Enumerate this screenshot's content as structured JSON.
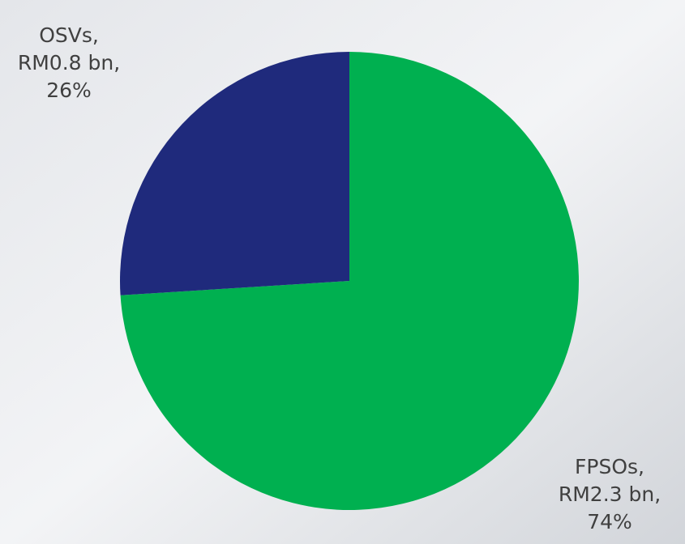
{
  "chart_data": {
    "type": "pie",
    "categories": [
      "FPSOs,",
      "OSVs,"
    ],
    "values": [
      74,
      26
    ],
    "value_labels": [
      "74%",
      "26%"
    ],
    "amounts": [
      2.3,
      0.8
    ],
    "amount_labels": [
      "RM2.3 bn,",
      "RM0.8 bn,"
    ],
    "colors": [
      "#00b050",
      "#1f2a7c"
    ]
  }
}
